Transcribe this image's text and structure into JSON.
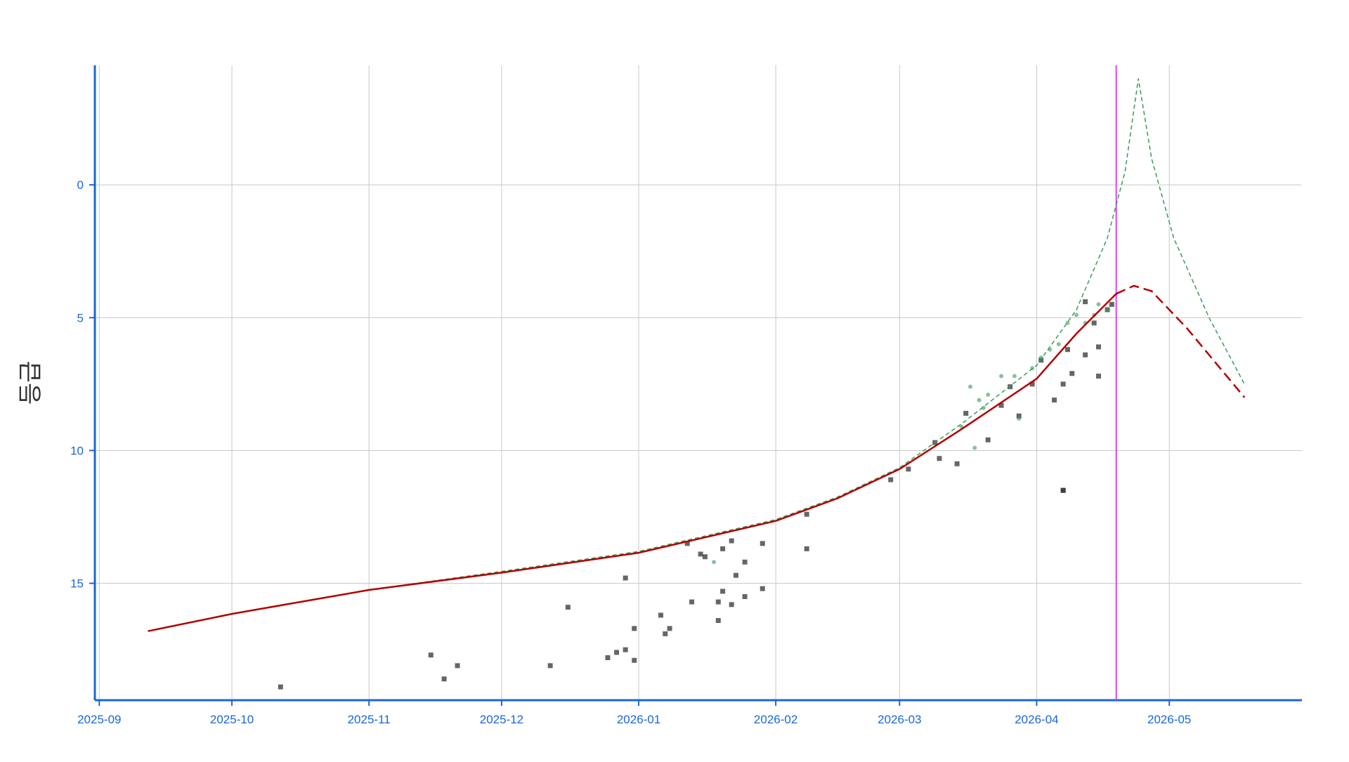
{
  "chart_data": {
    "type": "scatter",
    "y_label": "등급",
    "xlim": [
      "2025-08-31",
      "2026-05-31"
    ],
    "xticks": [
      {
        "value": "2025-09-01",
        "label": "2025-09"
      },
      {
        "value": "2025-10-01",
        "label": "2025-10"
      },
      {
        "value": "2025-11-01",
        "label": "2025-11"
      },
      {
        "value": "2025-12-01",
        "label": "2025-12"
      },
      {
        "value": "2026-01-01",
        "label": "2026-01"
      },
      {
        "value": "2026-02-01",
        "label": "2026-02"
      },
      {
        "value": "2026-03-01",
        "label": "2026-03"
      },
      {
        "value": "2026-04-01",
        "label": "2026-04"
      },
      {
        "value": "2026-05-01",
        "label": "2026-05"
      }
    ],
    "ylim": [
      -4.5,
      19.4
    ],
    "y_reversed": true,
    "yticks": [
      0,
      5,
      10,
      15
    ],
    "grid": true,
    "vline": {
      "x": "2026-04-19",
      "color": "#e040fb"
    },
    "series": [
      {
        "mode": "markers",
        "marker": "square",
        "color": "#333333",
        "x": [
          "2025-10-12",
          "2025-11-15",
          "2025-11-18",
          "2025-11-21",
          "2025-12-12",
          "2025-12-16",
          "2025-12-25",
          "2025-12-27",
          "2025-12-29",
          "2025-12-29",
          "2025-12-31",
          "2025-12-31",
          "2026-01-06",
          "2026-01-07",
          "2026-01-08",
          "2026-01-13",
          "2026-01-12",
          "2026-01-15",
          "2026-01-16",
          "2026-01-19",
          "2026-01-19",
          "2026-01-20",
          "2026-01-20",
          "2026-01-22",
          "2026-01-23",
          "2026-01-22",
          "2026-01-25",
          "2026-01-25",
          "2026-01-29",
          "2026-01-29",
          "2026-02-08",
          "2026-02-08",
          "2026-02-27",
          "2026-03-03",
          "2026-03-09",
          "2026-03-10",
          "2026-03-14",
          "2026-03-16",
          "2026-03-21",
          "2026-03-24",
          "2026-03-26",
          "2026-03-28",
          "2026-03-31",
          "2026-04-02",
          "2026-04-05",
          "2026-04-07",
          "2026-04-07",
          "2026-04-07",
          "2026-04-08",
          "2026-04-09",
          "2026-04-12",
          "2026-04-12",
          "2026-04-15",
          "2026-04-15",
          "2026-04-14",
          "2026-04-17",
          "2026-04-18"
        ],
        "values": [
          18.9,
          17.7,
          18.6,
          18.1,
          18.1,
          15.9,
          17.8,
          17.6,
          17.5,
          14.8,
          17.9,
          16.7,
          16.2,
          16.9,
          16.7,
          15.7,
          13.5,
          13.9,
          14.0,
          16.4,
          15.7,
          15.3,
          13.7,
          13.4,
          14.7,
          15.8,
          15.5,
          14.2,
          15.2,
          13.5,
          13.7,
          12.4,
          11.1,
          10.7,
          9.7,
          10.3,
          10.5,
          8.6,
          9.6,
          8.3,
          7.6,
          8.7,
          7.5,
          6.6,
          8.1,
          11.5,
          11.5,
          7.5,
          6.2,
          7.1,
          6.4,
          4.4,
          7.2,
          6.1,
          5.2,
          4.7,
          4.5
        ]
      },
      {
        "mode": "markers",
        "marker": "circle",
        "color": "#3a9a5a",
        "x": [
          "2026-01-18",
          "2026-03-15",
          "2026-03-17",
          "2026-03-18",
          "2026-03-20",
          "2026-03-24",
          "2026-03-27",
          "2026-03-28",
          "2026-03-31",
          "2026-04-04",
          "2026-04-06",
          "2026-04-08",
          "2026-04-10",
          "2026-04-12",
          "2026-04-14",
          "2026-04-17",
          "2026-03-19",
          "2026-03-21",
          "2026-04-02",
          "2026-04-15"
        ],
        "values": [
          14.2,
          9.1,
          7.6,
          9.9,
          8.4,
          7.2,
          7.2,
          8.8,
          6.9,
          6.2,
          6.0,
          5.2,
          4.9,
          5.2,
          4.9,
          4.7,
          8.1,
          7.9,
          6.5,
          4.5
        ]
      },
      {
        "mode": "line",
        "dash": true,
        "width": 1.5,
        "color": "#3a9a5a",
        "x": [
          "2025-09-12",
          "2025-10-01",
          "2025-11-01",
          "2025-12-01",
          "2026-01-01",
          "2026-02-01",
          "2026-02-15",
          "2026-03-01",
          "2026-03-15",
          "2026-04-01",
          "2026-04-10",
          "2026-04-17",
          "2026-04-21",
          "2026-04-24",
          "2026-04-27",
          "2026-05-02",
          "2026-05-10",
          "2026-05-18"
        ],
        "values": [
          16.8,
          16.15,
          15.25,
          14.55,
          13.8,
          12.6,
          11.75,
          10.65,
          9.0,
          6.8,
          4.7,
          2.0,
          -0.5,
          -4.0,
          -1.0,
          2.0,
          5.0,
          7.5
        ]
      },
      {
        "mode": "line",
        "dash": false,
        "width": 2.5,
        "color": "#b30000",
        "x": [
          "2025-09-12",
          "2025-10-01",
          "2025-11-01",
          "2025-12-01",
          "2026-01-01",
          "2026-02-01",
          "2026-02-15",
          "2026-03-01",
          "2026-03-15",
          "2026-04-01",
          "2026-04-10",
          "2026-04-19"
        ],
        "values": [
          16.8,
          16.15,
          15.25,
          14.6,
          13.85,
          12.65,
          11.8,
          10.7,
          9.2,
          7.3,
          5.6,
          4.1
        ]
      },
      {
        "mode": "line",
        "dash": true,
        "width": 2.5,
        "color": "#b30000",
        "x": [
          "2026-04-19",
          "2026-04-23",
          "2026-04-27",
          "2026-05-05",
          "2026-05-12",
          "2026-05-18"
        ],
        "values": [
          4.1,
          3.8,
          4.0,
          5.4,
          6.8,
          8.0
        ]
      }
    ]
  }
}
